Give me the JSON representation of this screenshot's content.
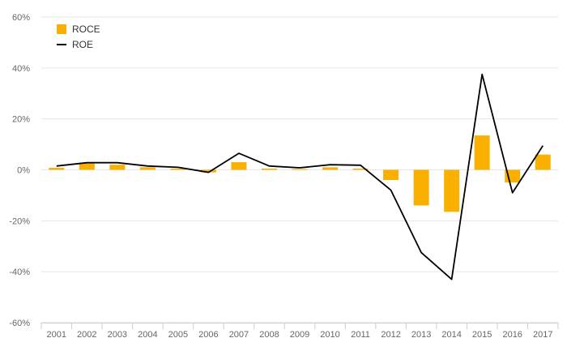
{
  "chart_data": {
    "type": "bar",
    "categories": [
      "2001",
      "2002",
      "2003",
      "2004",
      "2005",
      "2006",
      "2007",
      "2008",
      "2009",
      "2010",
      "2011",
      "2012",
      "2013",
      "2014",
      "2015",
      "2016",
      "2017"
    ],
    "series": [
      {
        "name": "ROCE",
        "type": "bar",
        "color": "#F9B000",
        "values": [
          0.8,
          2.5,
          2.0,
          1.0,
          0.5,
          -1.0,
          3.0,
          0.5,
          0.3,
          1.0,
          0.5,
          -4.0,
          -14.0,
          -16.5,
          13.5,
          -5.0,
          6.0
        ]
      },
      {
        "name": "ROE",
        "type": "line",
        "color": "#000000",
        "values": [
          1.5,
          2.8,
          2.8,
          1.5,
          1.0,
          -1.0,
          6.5,
          1.5,
          0.8,
          2.0,
          1.8,
          -8.0,
          -32.5,
          -43.0,
          37.5,
          -9.0,
          9.5
        ]
      }
    ],
    "ylim": [
      -60,
      60
    ],
    "yticks": [
      "60%",
      "40%",
      "20%",
      "0%",
      "-20%",
      "-40%",
      "-60%"
    ],
    "ytick_values": [
      60,
      40,
      20,
      0,
      -20,
      -40,
      -60
    ],
    "title": "",
    "xlabel": "",
    "ylabel": "",
    "grid": true,
    "legend_position": "top-left"
  }
}
